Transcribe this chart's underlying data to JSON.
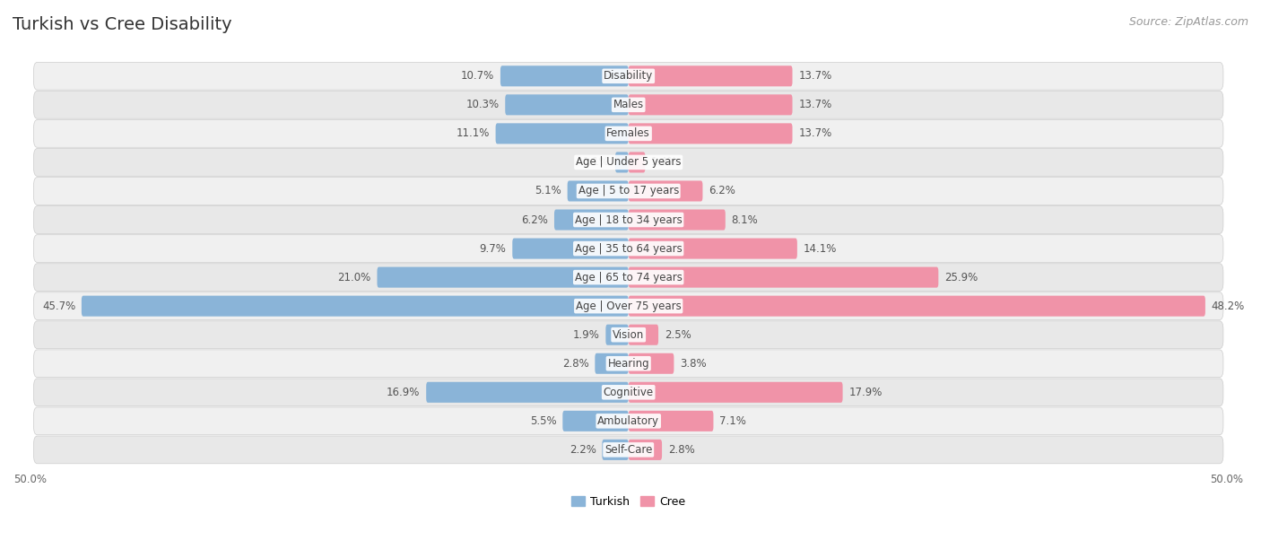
{
  "title": "Turkish vs Cree Disability",
  "source": "Source: ZipAtlas.com",
  "categories": [
    "Disability",
    "Males",
    "Females",
    "Age | Under 5 years",
    "Age | 5 to 17 years",
    "Age | 18 to 34 years",
    "Age | 35 to 64 years",
    "Age | 65 to 74 years",
    "Age | Over 75 years",
    "Vision",
    "Hearing",
    "Cognitive",
    "Ambulatory",
    "Self-Care"
  ],
  "turkish_values": [
    10.7,
    10.3,
    11.1,
    1.1,
    5.1,
    6.2,
    9.7,
    21.0,
    45.7,
    1.9,
    2.8,
    16.9,
    5.5,
    2.2
  ],
  "cree_values": [
    13.7,
    13.7,
    13.7,
    1.4,
    6.2,
    8.1,
    14.1,
    25.9,
    48.2,
    2.5,
    3.8,
    17.9,
    7.1,
    2.8
  ],
  "turkish_color": "#8ab4d8",
  "cree_color": "#f093a8",
  "turkish_label": "Turkish",
  "cree_label": "Cree",
  "xlim": 50.0,
  "bar_height": 0.72,
  "row_colors": [
    "#f0f0f0",
    "#e8e8e8"
  ],
  "title_fontsize": 14,
  "source_fontsize": 9,
  "cat_fontsize": 8.5,
  "value_fontsize": 8.5,
  "legend_fontsize": 9,
  "axis_label_fontsize": 8.5
}
